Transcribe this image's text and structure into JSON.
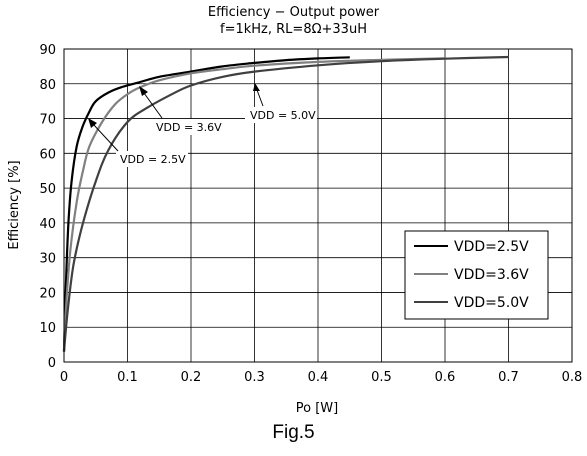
{
  "chart_data": {
    "type": "line",
    "title": "",
    "subtitle_lines": [
      "Efficiency − Output power",
      "f=1kHz, RL=8Ω+33uH"
    ],
    "xlabel": "Po [W]",
    "ylabel": "Efficiency [%]",
    "xlim": [
      0,
      0.8
    ],
    "ylim": [
      0,
      90
    ],
    "xticks": [
      "0",
      "0.1",
      "0.2",
      "0.3",
      "0.4",
      "0.5",
      "0.6",
      "0.7",
      "0.8"
    ],
    "yticks": [
      "0",
      "10",
      "20",
      "30",
      "40",
      "50",
      "60",
      "70",
      "80",
      "90"
    ],
    "grid": true,
    "legend_position": "bottom-right",
    "series": [
      {
        "name": "VDD=2.5V",
        "color": "#000000",
        "x": [
          0,
          0.003,
          0.007,
          0.012,
          0.02,
          0.03,
          0.04,
          0.05,
          0.07,
          0.09,
          0.12,
          0.15,
          0.2,
          0.25,
          0.3,
          0.35,
          0.4,
          0.45
        ],
        "y": [
          3,
          22,
          40,
          52,
          62,
          68,
          72,
          75,
          77.5,
          79,
          80.5,
          82,
          83.5,
          85,
          86,
          86.8,
          87.3,
          87.6
        ]
      },
      {
        "name": "VDD=3.6V",
        "color": "#808080",
        "x": [
          0,
          0.004,
          0.01,
          0.02,
          0.03,
          0.04,
          0.06,
          0.08,
          0.1,
          0.12,
          0.15,
          0.2,
          0.25,
          0.3,
          0.4,
          0.5,
          0.6
        ],
        "y": [
          3,
          18,
          32,
          46,
          55,
          62,
          69,
          74,
          77,
          79,
          81,
          83,
          84.2,
          85.2,
          86.3,
          86.9,
          87.3
        ]
      },
      {
        "name": "VDD=5.0V",
        "color": "#404040",
        "x": [
          0,
          0.006,
          0.015,
          0.03,
          0.05,
          0.07,
          0.1,
          0.13,
          0.17,
          0.2,
          0.25,
          0.3,
          0.4,
          0.5,
          0.6,
          0.7
        ],
        "y": [
          3,
          15,
          28,
          40,
          52,
          61,
          69,
          73,
          77,
          79.5,
          82,
          83.5,
          85.3,
          86.5,
          87.2,
          87.7
        ]
      }
    ],
    "annotations": [
      "VDD = 3.6V",
      "VDD = 5.0V",
      "VDD = 2.5V"
    ]
  },
  "figure_label": "Fig.5"
}
